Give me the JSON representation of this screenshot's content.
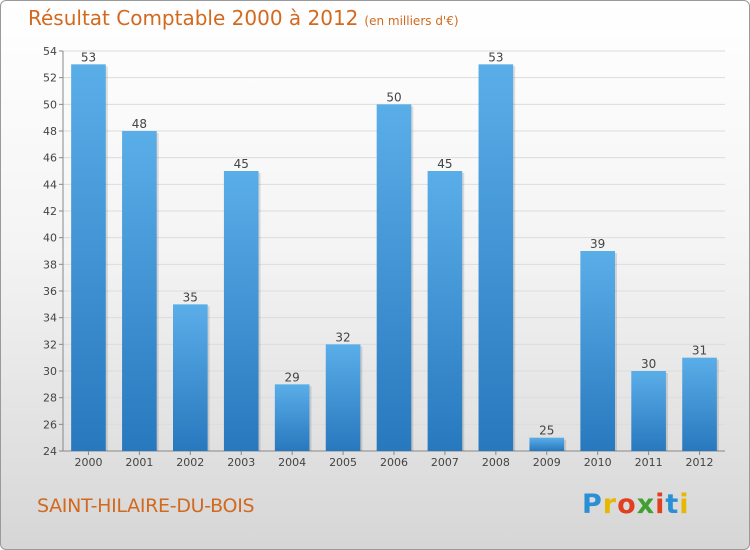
{
  "title": "Résultat Comptable 2000 à 2012",
  "subtitle": "(en milliers d'€)",
  "city": "SAINT-HILAIRE-DU-BOIS",
  "logo": {
    "letters": [
      "P",
      "r",
      "o",
      "x",
      "i",
      "t",
      "i"
    ],
    "colors": [
      "#2a8fd4",
      "#e6b800",
      "#e04020",
      "#40a030",
      "#e04020",
      "#2a8fd4",
      "#e6b800"
    ]
  },
  "colors": {
    "bar_light": "#5aaee8",
    "bar_dark": "#2878be",
    "accent": "#d2691e"
  },
  "chart_data": {
    "type": "bar",
    "title": "Résultat Comptable 2000 à 2012",
    "xlabel": "",
    "ylabel": "",
    "categories": [
      "2000",
      "2001",
      "2002",
      "2003",
      "2004",
      "2005",
      "2006",
      "2007",
      "2008",
      "2009",
      "2010",
      "2011",
      "2012"
    ],
    "values": [
      53,
      48,
      35,
      45,
      29,
      32,
      50,
      45,
      53,
      25,
      39,
      30,
      31
    ],
    "ylim": [
      24,
      54
    ],
    "yticks": [
      24,
      26,
      28,
      30,
      32,
      34,
      36,
      38,
      40,
      42,
      44,
      46,
      48,
      50,
      52,
      54
    ],
    "grid": true
  }
}
